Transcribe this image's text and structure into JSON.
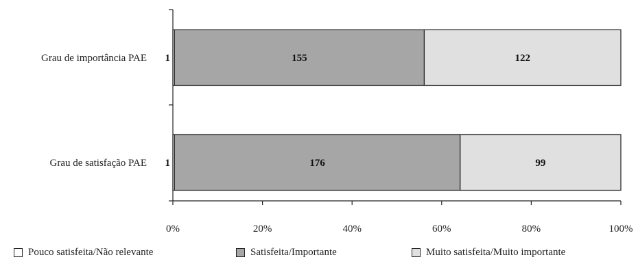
{
  "chart_data": {
    "type": "bar",
    "orientation": "horizontal",
    "stacked": "percent",
    "categories": [
      "Grau de importância PAE",
      "Grau de satisfação PAE"
    ],
    "series": [
      {
        "name": "Pouco satisfeita/Não relevante",
        "values": [
          1,
          1
        ],
        "color": "#ffffff"
      },
      {
        "name": "Satisfeita/Importante",
        "values": [
          155,
          176
        ],
        "color": "#a6a6a6"
      },
      {
        "name": "Muito satisfeita/Muito importante",
        "values": [
          122,
          99
        ],
        "color": "#e0e0e0"
      }
    ],
    "x_ticks": [
      "0%",
      "20%",
      "40%",
      "60%",
      "80%",
      "100%"
    ],
    "xlim": [
      0,
      100
    ],
    "grid": false,
    "legend_position": "bottom"
  }
}
